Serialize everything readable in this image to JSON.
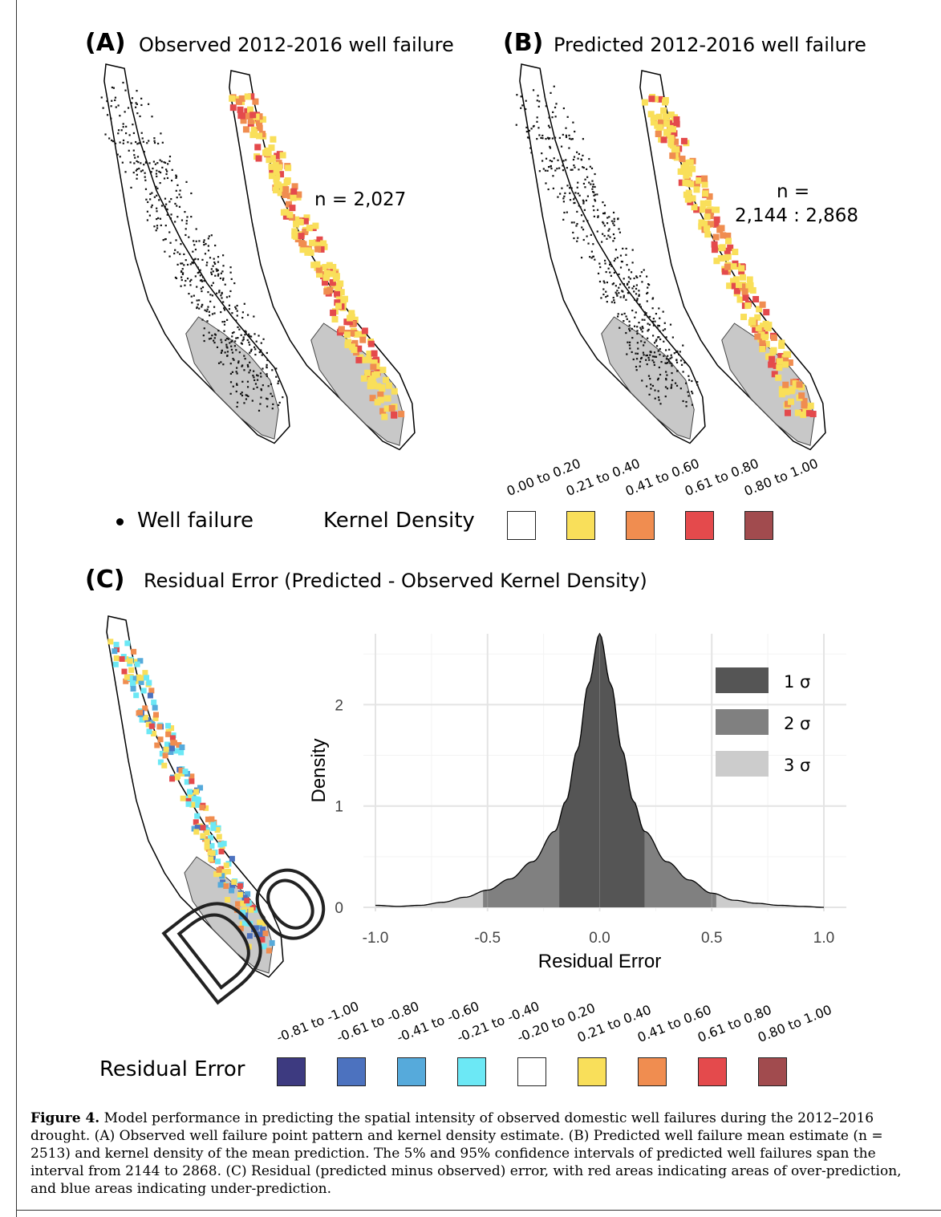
{
  "panels": {
    "a": {
      "letter": "(A)",
      "title": "Observed 2012-2016 well failure",
      "n_label": "n = 2,027"
    },
    "b": {
      "letter": "(B)",
      "title": "Predicted 2012-2016 well failure",
      "n_label_line1": "n =",
      "n_label_line2": "2,144 : 2,868"
    },
    "c": {
      "letter": "(C)",
      "title": "Residual Error (Predicted - Observed Kernel Density)"
    }
  },
  "legend_top": {
    "well_failure_label": "Well failure",
    "kernel_density_label": "Kernel Density",
    "bins": [
      {
        "label": "0.00 to 0.20",
        "color": "#ffffff"
      },
      {
        "label": "0.21 to 0.40",
        "color": "#f9df5a"
      },
      {
        "label": "0.41 to 0.60",
        "color": "#f08d50"
      },
      {
        "label": "0.61 to 0.80",
        "color": "#e44a4c"
      },
      {
        "label": "0.80 to 1.00",
        "color": "#a14b4e"
      }
    ]
  },
  "legend_bottom": {
    "label": "Residual Error",
    "bins": [
      {
        "label": "-0.81 to -1.00",
        "color": "#3d3a80"
      },
      {
        "label": "-0.61 to -0.80",
        "color": "#4c72bf"
      },
      {
        "label": "-0.41 to -0.60",
        "color": "#56aadb"
      },
      {
        "label": "-0.21 to -0.40",
        "color": "#6ce8f5"
      },
      {
        "label": "-0.20 to 0.20",
        "color": "#ffffff"
      },
      {
        "label": "0.21 to 0.40",
        "color": "#f9df5a"
      },
      {
        "label": "0.41 to 0.60",
        "color": "#f08d50"
      },
      {
        "label": "0.61 to 0.80",
        "color": "#e44a4c"
      },
      {
        "label": "0.80 to 1.00",
        "color": "#a14b4e"
      }
    ]
  },
  "chart_data": {
    "type": "area",
    "xlabel": "Residual Error",
    "ylabel": "Density",
    "xlim": [
      -1.0,
      1.0
    ],
    "ylim": [
      0,
      2.7
    ],
    "x_ticks": [
      "-1.0",
      "-0.5",
      "0.0",
      "0.5",
      "1.0"
    ],
    "y_ticks": [
      "0",
      "1",
      "2"
    ],
    "x": [
      -1.0,
      -0.9,
      -0.8,
      -0.7,
      -0.6,
      -0.5,
      -0.4,
      -0.3,
      -0.2,
      -0.15,
      -0.1,
      -0.05,
      0.0,
      0.05,
      0.1,
      0.15,
      0.2,
      0.3,
      0.4,
      0.5,
      0.6,
      0.7,
      0.8,
      0.9,
      1.0
    ],
    "y": [
      0.02,
      0.01,
      0.02,
      0.05,
      0.1,
      0.17,
      0.28,
      0.45,
      0.75,
      1.05,
      1.55,
      2.2,
      2.7,
      2.2,
      1.55,
      1.05,
      0.75,
      0.45,
      0.27,
      0.14,
      0.07,
      0.04,
      0.02,
      0.01,
      0.0
    ],
    "bands": [
      {
        "name": "1 σ",
        "from": -0.18,
        "to": 0.2,
        "color": "#555555"
      },
      {
        "name": "2 σ",
        "from": -0.52,
        "to": 0.52,
        "color": "#808080"
      },
      {
        "name": "3 σ",
        "from": -1.0,
        "to": 1.0,
        "color": "#cccccc"
      }
    ],
    "grid": true,
    "legend_position": "top-right"
  },
  "caption": {
    "label": "Figure 4.",
    "text": " Model performance in predicting the spatial intensity of observed domestic well failures during the 2012–2016 drought. (A) Observed well failure point pattern and kernel density estimate. (B) Predicted well failure mean estimate (n = 2513) and kernel density of the mean prediction. The 5% and 95% confidence intervals of predicted well failures span the interval from 2144 to 2868. (C) Residual (predicted minus observed) error, with red areas indicating areas of over-prediction, and blue areas indicating under-prediction."
  },
  "watermark": "Do"
}
